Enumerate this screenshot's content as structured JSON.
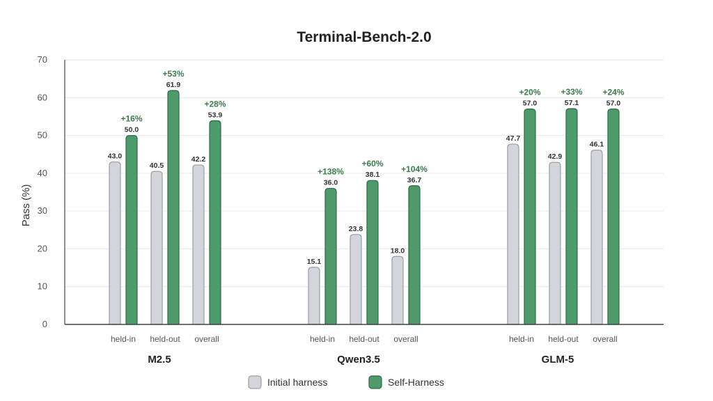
{
  "colors": {
    "initial_fill": "#d3d5db",
    "initial_stroke": "#9a9da6",
    "self_fill": "#4f9a6a",
    "self_stroke": "#2e6b44",
    "gain_text": "#3a7d4c",
    "grid": "#e6e6e6",
    "axis": "#444444"
  },
  "chart_data": {
    "type": "bar",
    "title": "Terminal-Bench-2.0",
    "xlabel": "",
    "ylabel": "Pass (%)",
    "ylim": [
      0,
      70
    ],
    "yticks": [
      "0",
      "10",
      "20",
      "30",
      "40",
      "50",
      "60",
      "70"
    ],
    "grid": true,
    "legend_position": "bottom-center",
    "groups": [
      {
        "name": "M2.5",
        "categories": [
          "held-in",
          "held-out",
          "overall"
        ],
        "initial": [
          43.0,
          40.5,
          42.2
        ],
        "self": [
          50.0,
          61.9,
          53.9
        ],
        "initial_labels": [
          "43.0",
          "40.5",
          "42.2"
        ],
        "self_labels": [
          "50.0",
          "61.9",
          "53.9"
        ],
        "gains": [
          "+16%",
          "+53%",
          "+28%"
        ]
      },
      {
        "name": "Qwen3.5",
        "categories": [
          "held-in",
          "held-out",
          "overall"
        ],
        "initial": [
          15.1,
          23.8,
          18.0
        ],
        "self": [
          36.0,
          38.1,
          36.7
        ],
        "initial_labels": [
          "15.1",
          "23.8",
          "18.0"
        ],
        "self_labels": [
          "36.0",
          "38.1",
          "36.7"
        ],
        "gains": [
          "+138%",
          "+60%",
          "+104%"
        ]
      },
      {
        "name": "GLM-5",
        "categories": [
          "held-in",
          "held-out",
          "overall"
        ],
        "initial": [
          47.7,
          42.9,
          46.1
        ],
        "self": [
          57.0,
          57.1,
          57.0
        ],
        "initial_labels": [
          "47.7",
          "42.9",
          "46.1"
        ],
        "self_labels": [
          "57.0",
          "57.1",
          "57.0"
        ],
        "gains": [
          "+20%",
          "+33%",
          "+24%"
        ]
      }
    ],
    "series": [
      {
        "name": "Initial harness",
        "key": "initial"
      },
      {
        "name": "Self-Harness",
        "key": "self"
      }
    ]
  }
}
